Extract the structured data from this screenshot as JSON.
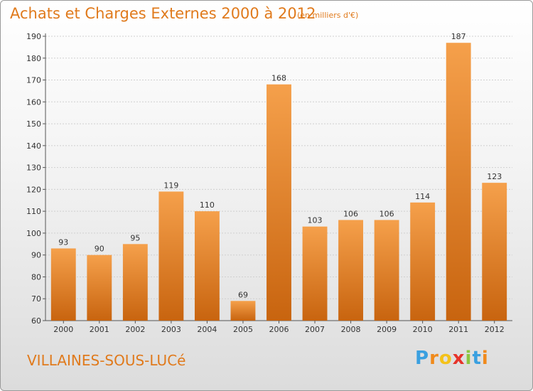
{
  "chart_data": {
    "type": "bar",
    "title": "Achats et Charges Externes 2000 à 2012",
    "subtitle": "(en milliers d'€)",
    "categories": [
      "2000",
      "2001",
      "2002",
      "2003",
      "2004",
      "2005",
      "2006",
      "2007",
      "2008",
      "2009",
      "2010",
      "2011",
      "2012"
    ],
    "values": [
      93,
      90,
      95,
      119,
      110,
      69,
      168,
      103,
      106,
      106,
      114,
      187,
      123
    ],
    "ylim": [
      60,
      190
    ],
    "yticks": [
      60,
      70,
      80,
      90,
      100,
      110,
      120,
      130,
      140,
      150,
      160,
      170,
      180,
      190
    ],
    "grid": true,
    "bar_color": "#f5a04b",
    "bar_color_dark": "#c8640f"
  },
  "footer": {
    "city": "VILLAINES-SOUS-LUCé"
  },
  "logo": {
    "letters": [
      "P",
      "r",
      "o",
      "x",
      "i",
      "t",
      "i"
    ],
    "colors": [
      "#3aa0e0",
      "#f08a1c",
      "#f4c21a",
      "#e6332a",
      "#8cc63f",
      "#3aa0e0",
      "#f08a1c"
    ]
  }
}
